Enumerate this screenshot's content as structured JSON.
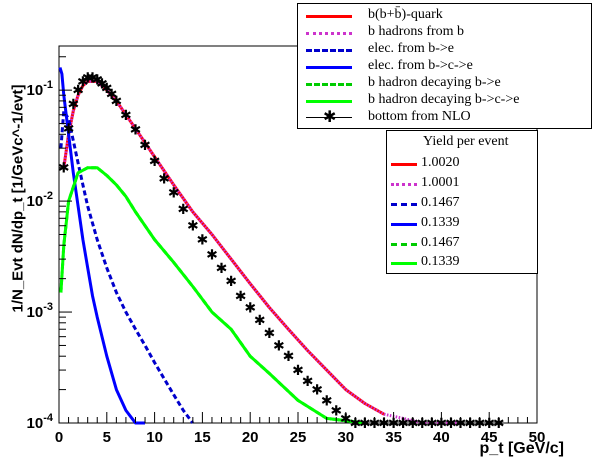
{
  "chart_data": {
    "type": "line",
    "xlabel": "p_t [GeV/c]",
    "ylabel": "1/N_Evt dN/dp_t [1/GeVc^-1/evt]",
    "xlim": [
      0,
      50
    ],
    "ylim": [
      0.0001,
      0.25
    ],
    "yscale": "log",
    "xticks": [
      "0",
      "5",
      "10",
      "15",
      "20",
      "25",
      "30",
      "35",
      "40",
      "45",
      "50"
    ],
    "yticks": [
      "10^-4",
      "10^-3",
      "10^-2",
      "10^-1"
    ],
    "series": [
      {
        "name": "b(b+b̄)-quark",
        "color": "#ff0000",
        "style": "solid",
        "width": 3,
        "x": [
          0.5,
          1,
          1.5,
          2,
          2.5,
          3,
          4,
          5,
          6,
          7,
          8,
          10,
          12,
          14,
          16,
          18,
          20,
          22,
          24,
          26,
          28,
          30,
          32,
          34
        ],
        "y": [
          0.02,
          0.04,
          0.065,
          0.09,
          0.11,
          0.12,
          0.12,
          0.1,
          0.08,
          0.06,
          0.045,
          0.025,
          0.014,
          0.008,
          0.005,
          0.003,
          0.0018,
          0.0011,
          0.0007,
          0.00045,
          0.0003,
          0.0002,
          0.00015,
          0.00012
        ]
      },
      {
        "name": "b hadrons from b",
        "color": "#cc33cc",
        "style": "dotted",
        "width": 3,
        "x": [
          0.5,
          1,
          1.5,
          2,
          2.5,
          3,
          4,
          5,
          6,
          7,
          8,
          10,
          12,
          14,
          16,
          18,
          20,
          22,
          24,
          26,
          28,
          30,
          32,
          34,
          36,
          38,
          40,
          42
        ],
        "y": [
          0.02,
          0.04,
          0.065,
          0.09,
          0.11,
          0.12,
          0.12,
          0.1,
          0.08,
          0.06,
          0.045,
          0.025,
          0.014,
          0.008,
          0.005,
          0.003,
          0.0018,
          0.0011,
          0.0007,
          0.00045,
          0.0003,
          0.0002,
          0.00015,
          0.00012,
          0.00011,
          0.0001,
          0.0001,
          0.0001
        ]
      },
      {
        "name": "elec. from b->e",
        "color": "#0000cc",
        "style": "dashed",
        "width": 3,
        "x": [
          0.2,
          0.5,
          1,
          1.5,
          2,
          2.5,
          3,
          4,
          5,
          6,
          7,
          8,
          9,
          10,
          11,
          12,
          13,
          14
        ],
        "y": [
          0.03,
          0.065,
          0.055,
          0.035,
          0.022,
          0.014,
          0.009,
          0.0045,
          0.0025,
          0.0015,
          0.001,
          0.0007,
          0.0005,
          0.00035,
          0.00025,
          0.00018,
          0.00013,
          0.0001
        ]
      },
      {
        "name": "elec. from b->c->e",
        "color": "#0000ff",
        "style": "solid",
        "width": 3,
        "x": [
          0.1,
          0.3,
          0.5,
          1,
          1.5,
          2,
          2.5,
          3,
          3.5,
          4,
          5,
          6,
          7,
          8,
          9
        ],
        "y": [
          0.16,
          0.14,
          0.09,
          0.04,
          0.018,
          0.009,
          0.0045,
          0.0025,
          0.0014,
          0.0009,
          0.0004,
          0.0002,
          0.00013,
          0.0001,
          0.0001
        ]
      },
      {
        "name": "b hadron decaying b->e",
        "color": "#00cc00",
        "style": "dashed",
        "width": 3,
        "x": [
          0.2,
          0.5,
          1,
          2,
          3,
          4,
          5,
          6,
          7,
          8,
          10,
          12,
          14,
          16,
          18,
          20,
          22,
          25,
          28,
          32
        ],
        "y": [
          0.0015,
          0.004,
          0.01,
          0.018,
          0.02,
          0.02,
          0.017,
          0.014,
          0.011,
          0.008,
          0.0045,
          0.0028,
          0.0017,
          0.001,
          0.0007,
          0.0004,
          0.00028,
          0.00016,
          0.00011,
          0.0001
        ]
      },
      {
        "name": "b hadron decaying b->c->e",
        "color": "#00ff00",
        "style": "solid",
        "width": 3,
        "x": [
          0.2,
          0.5,
          1,
          2,
          3,
          4,
          5,
          6,
          7,
          8,
          10,
          12,
          14,
          16,
          18,
          20,
          22,
          25,
          28,
          32
        ],
        "y": [
          0.0015,
          0.004,
          0.01,
          0.018,
          0.02,
          0.02,
          0.017,
          0.014,
          0.011,
          0.008,
          0.0045,
          0.0028,
          0.0017,
          0.001,
          0.0007,
          0.0004,
          0.00028,
          0.00016,
          0.00011,
          0.0001
        ]
      },
      {
        "name": "bottom from NLO",
        "color": "#000000",
        "style": "markers",
        "width": 1,
        "x": [
          0.5,
          1,
          1.5,
          2,
          2.5,
          3,
          3.5,
          4,
          4.5,
          5,
          5.5,
          6,
          7,
          8,
          9,
          10,
          11,
          12,
          13,
          14,
          15,
          16,
          17,
          18,
          19,
          20,
          21,
          22,
          23,
          24,
          25,
          26,
          27,
          28,
          29,
          30,
          31,
          32,
          33,
          34,
          35,
          36,
          37,
          38,
          39,
          40,
          41,
          42,
          43,
          44,
          45,
          46
        ],
        "y": [
          0.02,
          0.045,
          0.075,
          0.1,
          0.12,
          0.13,
          0.13,
          0.125,
          0.115,
          0.105,
          0.092,
          0.08,
          0.06,
          0.044,
          0.032,
          0.023,
          0.016,
          0.012,
          0.0085,
          0.006,
          0.0045,
          0.0033,
          0.0025,
          0.0019,
          0.0014,
          0.0011,
          0.00085,
          0.00065,
          0.0005,
          0.0004,
          0.0003,
          0.00024,
          0.0002,
          0.00016,
          0.00013,
          0.00011,
          0.0001,
          0.0001,
          0.0001,
          0.0001,
          0.0001,
          0.0001,
          0.0001,
          0.0001,
          0.0001,
          0.0001,
          0.0001,
          0.0001,
          0.0001,
          0.0001,
          0.0001,
          0.0001
        ]
      }
    ]
  },
  "legend": {
    "entries": [
      "b(b+b̄)-quark",
      "b hadrons from b",
      "elec. from b->e",
      "elec. from b->c->e",
      "b hadron decaying b->e",
      "b hadron decaying b->c->e",
      "bottom from NLO"
    ]
  },
  "yield_box": {
    "title": "Yield per event",
    "values": [
      "1.0020",
      "1.0001",
      "0.1467",
      "0.1339",
      "0.1467",
      "0.1339"
    ]
  },
  "axis_titles": {
    "y": "1/N_Evt dN/dp_t [1/GeVc^-1/evt]",
    "x": "p_t [GeV/c]"
  }
}
